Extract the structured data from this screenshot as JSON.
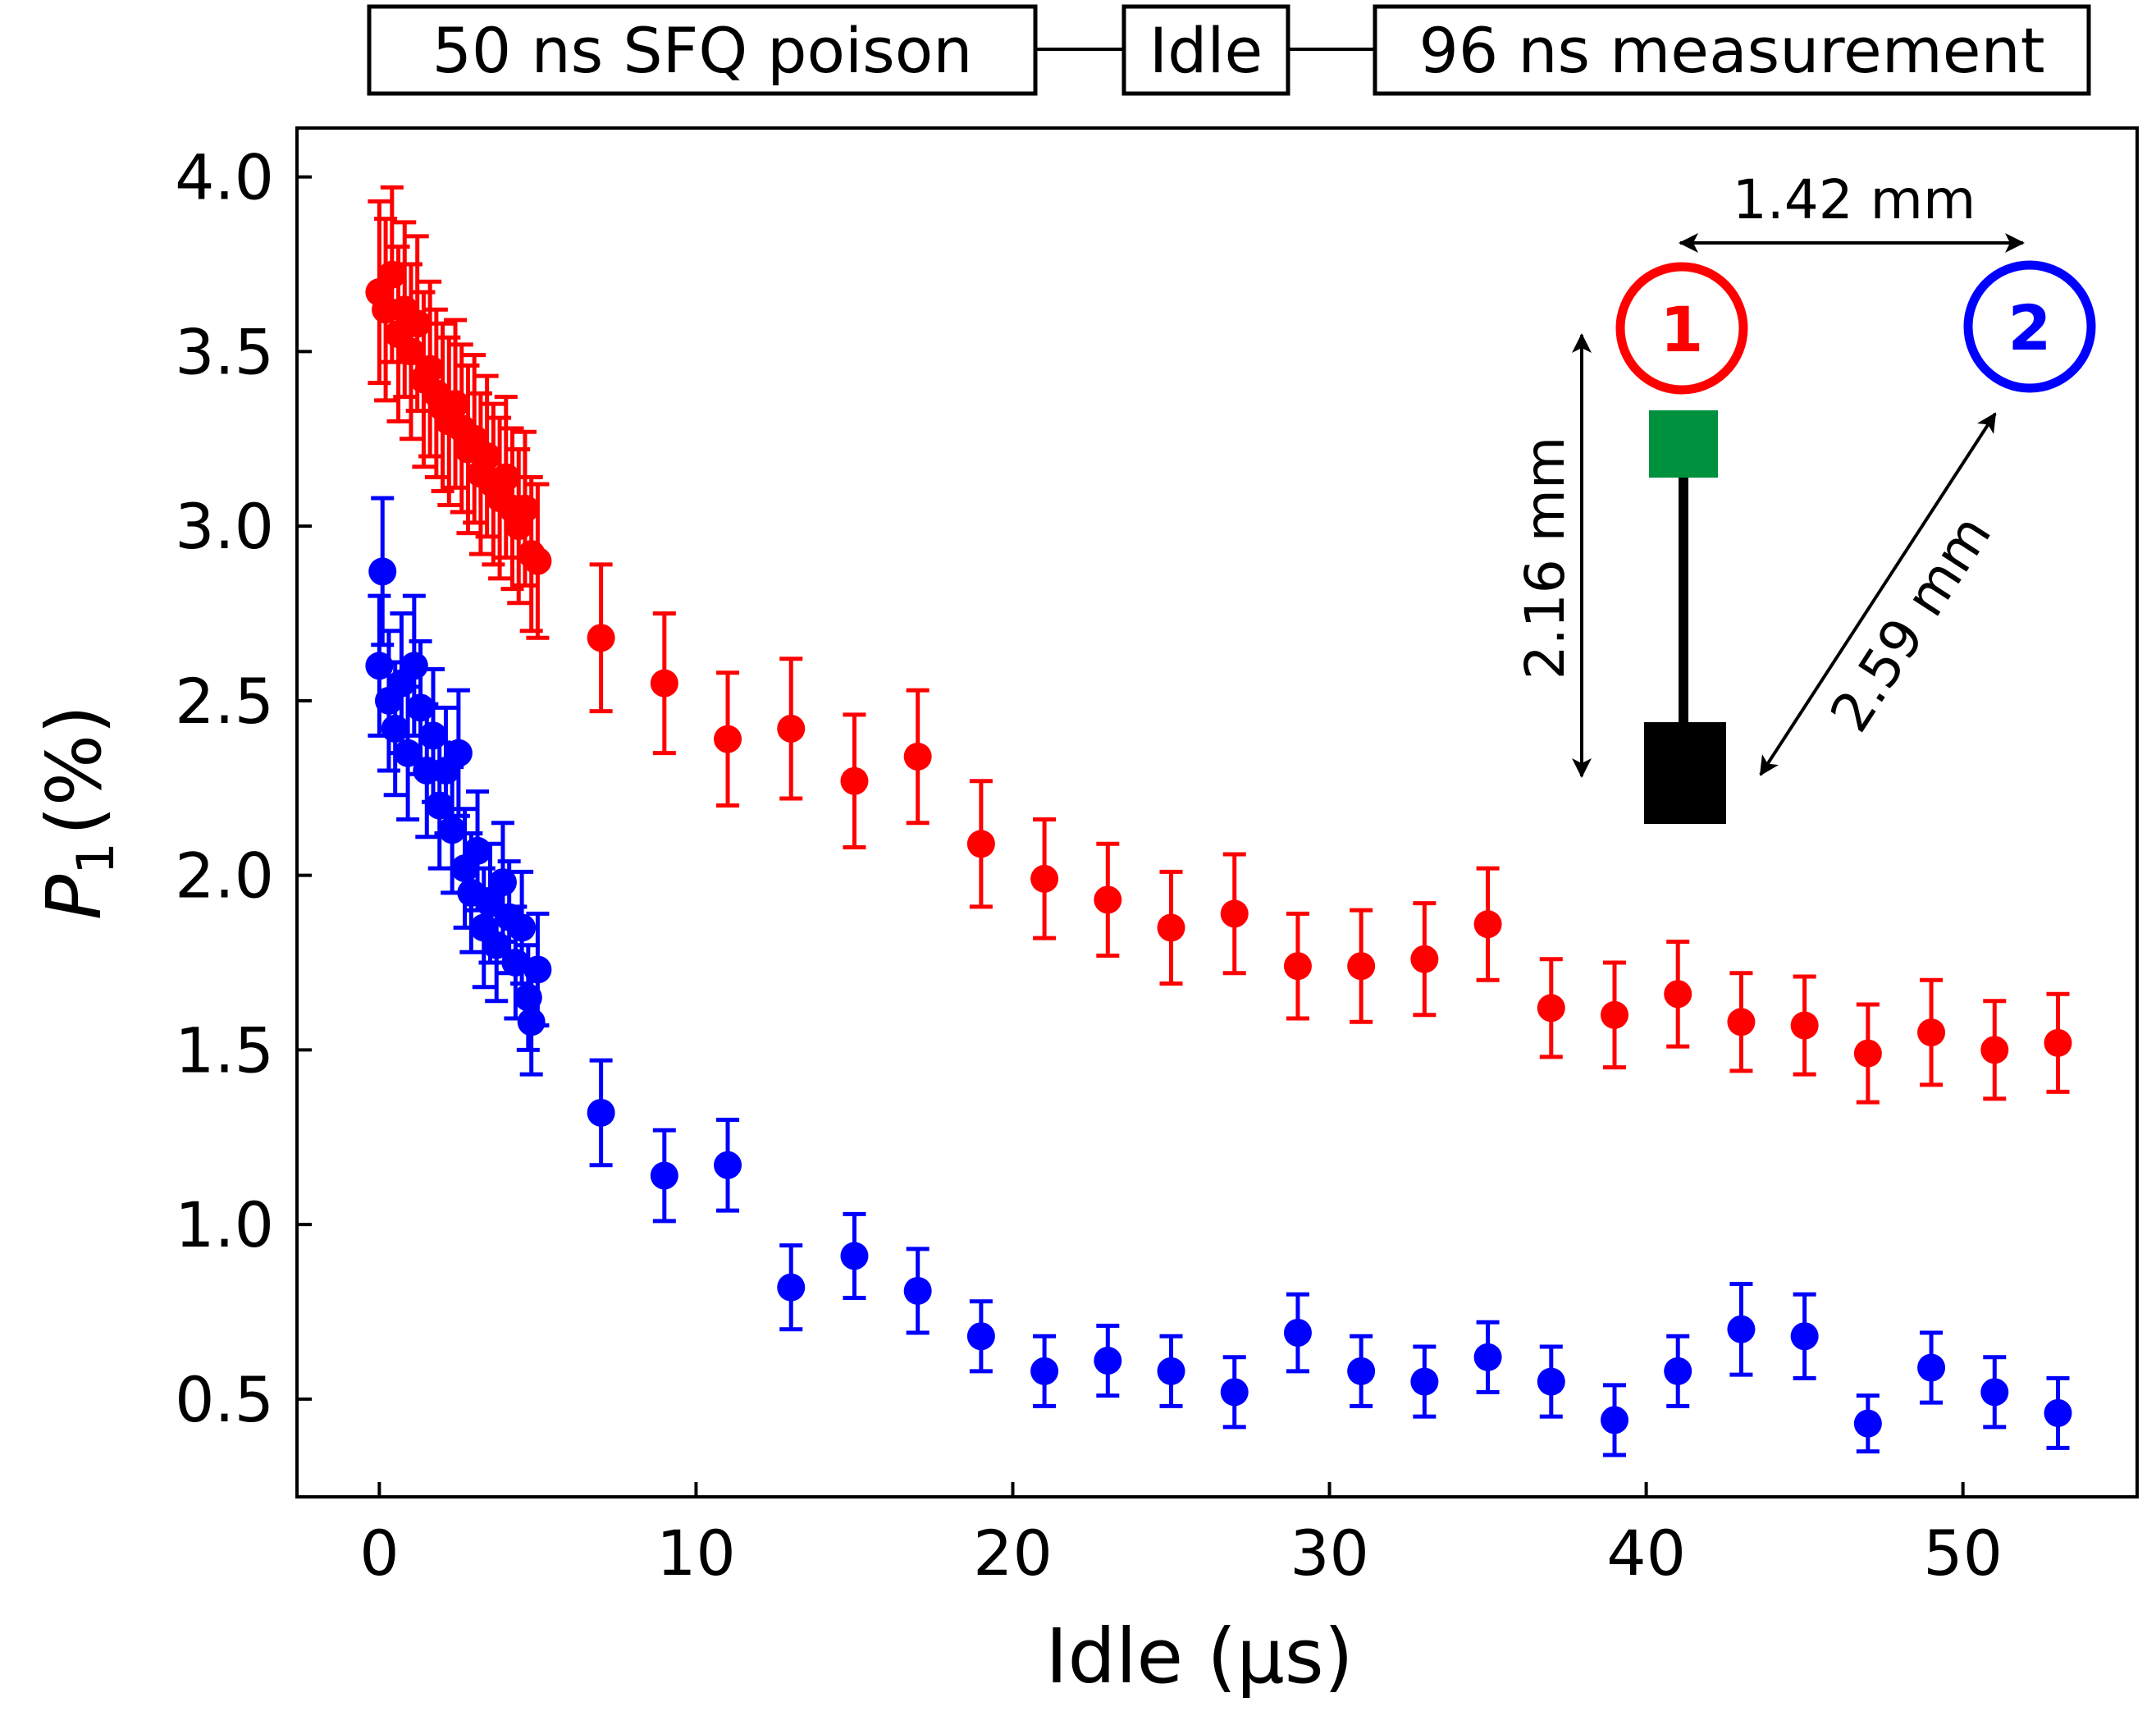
{
  "chart_data": {
    "type": "scatter",
    "title": "",
    "xlabel": "Idle (μs)",
    "ylabel_var": "P",
    "ylabel_sub": "1",
    "ylabel_unit": "(%)",
    "xlim": [
      -2.6,
      55.5
    ],
    "ylim": [
      0.22,
      4.14
    ],
    "xticks": [
      0,
      10,
      20,
      30,
      40,
      50
    ],
    "xtick_labels": [
      "0",
      "10",
      "20",
      "30",
      "40",
      "50"
    ],
    "yticks": [
      0.5,
      1.0,
      1.5,
      2.0,
      2.5,
      3.0,
      3.5,
      4.0
    ],
    "ytick_labels": [
      "0.5",
      "1.0",
      "1.5",
      "2.0",
      "2.5",
      "3.0",
      "3.5",
      "4.0"
    ],
    "series": [
      {
        "name": "qubit 1",
        "color": "#ff0000",
        "points": [
          {
            "x": 0.0,
            "y": 3.67,
            "err": 0.26
          },
          {
            "x": 0.2,
            "y": 3.62,
            "err": 0.26
          },
          {
            "x": 0.4,
            "y": 3.72,
            "err": 0.25
          },
          {
            "x": 0.6,
            "y": 3.55,
            "err": 0.25
          },
          {
            "x": 0.8,
            "y": 3.62,
            "err": 0.25
          },
          {
            "x": 1.0,
            "y": 3.5,
            "err": 0.25
          },
          {
            "x": 1.2,
            "y": 3.58,
            "err": 0.25
          },
          {
            "x": 1.4,
            "y": 3.42,
            "err": 0.25
          },
          {
            "x": 1.6,
            "y": 3.45,
            "err": 0.25
          },
          {
            "x": 1.8,
            "y": 3.38,
            "err": 0.24
          },
          {
            "x": 2.0,
            "y": 3.34,
            "err": 0.24
          },
          {
            "x": 2.2,
            "y": 3.3,
            "err": 0.24
          },
          {
            "x": 2.4,
            "y": 3.35,
            "err": 0.24
          },
          {
            "x": 2.6,
            "y": 3.28,
            "err": 0.24
          },
          {
            "x": 2.8,
            "y": 3.22,
            "err": 0.24
          },
          {
            "x": 3.0,
            "y": 3.25,
            "err": 0.24
          },
          {
            "x": 3.2,
            "y": 3.15,
            "err": 0.23
          },
          {
            "x": 3.4,
            "y": 3.2,
            "err": 0.23
          },
          {
            "x": 3.6,
            "y": 3.12,
            "err": 0.23
          },
          {
            "x": 3.8,
            "y": 3.08,
            "err": 0.23
          },
          {
            "x": 4.0,
            "y": 3.14,
            "err": 0.23
          },
          {
            "x": 4.2,
            "y": 3.05,
            "err": 0.23
          },
          {
            "x": 4.4,
            "y": 3.0,
            "err": 0.22
          },
          {
            "x": 4.6,
            "y": 3.05,
            "err": 0.22
          },
          {
            "x": 4.8,
            "y": 2.92,
            "err": 0.22
          },
          {
            "x": 5.0,
            "y": 2.9,
            "err": 0.22
          },
          {
            "x": 7,
            "y": 2.68,
            "err": 0.21
          },
          {
            "x": 9,
            "y": 2.55,
            "err": 0.2
          },
          {
            "x": 11,
            "y": 2.39,
            "err": 0.19
          },
          {
            "x": 13,
            "y": 2.42,
            "err": 0.2
          },
          {
            "x": 15,
            "y": 2.27,
            "err": 0.19
          },
          {
            "x": 17,
            "y": 2.34,
            "err": 0.19
          },
          {
            "x": 19,
            "y": 2.09,
            "err": 0.18
          },
          {
            "x": 21,
            "y": 1.99,
            "err": 0.17
          },
          {
            "x": 23,
            "y": 1.93,
            "err": 0.16
          },
          {
            "x": 25,
            "y": 1.85,
            "err": 0.16
          },
          {
            "x": 27,
            "y": 1.89,
            "err": 0.17
          },
          {
            "x": 29,
            "y": 1.74,
            "err": 0.15
          },
          {
            "x": 31,
            "y": 1.74,
            "err": 0.16
          },
          {
            "x": 33,
            "y": 1.76,
            "err": 0.16
          },
          {
            "x": 35,
            "y": 1.86,
            "err": 0.16
          },
          {
            "x": 37,
            "y": 1.62,
            "err": 0.14
          },
          {
            "x": 39,
            "y": 1.6,
            "err": 0.15
          },
          {
            "x": 41,
            "y": 1.66,
            "err": 0.15
          },
          {
            "x": 43,
            "y": 1.58,
            "err": 0.14
          },
          {
            "x": 45,
            "y": 1.57,
            "err": 0.14
          },
          {
            "x": 47,
            "y": 1.49,
            "err": 0.14
          },
          {
            "x": 49,
            "y": 1.55,
            "err": 0.15
          },
          {
            "x": 51,
            "y": 1.5,
            "err": 0.14
          },
          {
            "x": 53,
            "y": 1.52,
            "err": 0.14
          }
        ]
      },
      {
        "name": "qubit 2",
        "color": "#0000ff",
        "points": [
          {
            "x": 0.0,
            "y": 2.6,
            "err": 0.2
          },
          {
            "x": 0.1,
            "y": 2.87,
            "err": 0.21
          },
          {
            "x": 0.3,
            "y": 2.5,
            "err": 0.2
          },
          {
            "x": 0.5,
            "y": 2.42,
            "err": 0.19
          },
          {
            "x": 0.7,
            "y": 2.55,
            "err": 0.2
          },
          {
            "x": 0.9,
            "y": 2.35,
            "err": 0.19
          },
          {
            "x": 1.1,
            "y": 2.6,
            "err": 0.2
          },
          {
            "x": 1.3,
            "y": 2.48,
            "err": 0.19
          },
          {
            "x": 1.5,
            "y": 2.3,
            "err": 0.19
          },
          {
            "x": 1.7,
            "y": 2.4,
            "err": 0.19
          },
          {
            "x": 1.9,
            "y": 2.2,
            "err": 0.18
          },
          {
            "x": 2.1,
            "y": 2.3,
            "err": 0.18
          },
          {
            "x": 2.3,
            "y": 2.13,
            "err": 0.18
          },
          {
            "x": 2.5,
            "y": 2.35,
            "err": 0.18
          },
          {
            "x": 2.7,
            "y": 2.02,
            "err": 0.17
          },
          {
            "x": 2.9,
            "y": 1.95,
            "err": 0.17
          },
          {
            "x": 3.1,
            "y": 2.07,
            "err": 0.17
          },
          {
            "x": 3.3,
            "y": 1.85,
            "err": 0.17
          },
          {
            "x": 3.5,
            "y": 1.92,
            "err": 0.17
          },
          {
            "x": 3.7,
            "y": 1.8,
            "err": 0.16
          },
          {
            "x": 3.9,
            "y": 1.98,
            "err": 0.17
          },
          {
            "x": 4.1,
            "y": 1.88,
            "err": 0.16
          },
          {
            "x": 4.3,
            "y": 1.75,
            "err": 0.16
          },
          {
            "x": 4.5,
            "y": 1.85,
            "err": 0.16
          },
          {
            "x": 4.7,
            "y": 1.65,
            "err": 0.15
          },
          {
            "x": 4.8,
            "y": 1.58,
            "err": 0.15
          },
          {
            "x": 5.0,
            "y": 1.73,
            "err": 0.16
          },
          {
            "x": 7,
            "y": 1.32,
            "err": 0.15
          },
          {
            "x": 9,
            "y": 1.14,
            "err": 0.13
          },
          {
            "x": 11,
            "y": 1.17,
            "err": 0.13
          },
          {
            "x": 13,
            "y": 0.82,
            "err": 0.12
          },
          {
            "x": 15,
            "y": 0.91,
            "err": 0.12
          },
          {
            "x": 17,
            "y": 0.81,
            "err": 0.12
          },
          {
            "x": 19,
            "y": 0.68,
            "err": 0.1
          },
          {
            "x": 21,
            "y": 0.58,
            "err": 0.1
          },
          {
            "x": 23,
            "y": 0.61,
            "err": 0.1
          },
          {
            "x": 25,
            "y": 0.58,
            "err": 0.1
          },
          {
            "x": 27,
            "y": 0.52,
            "err": 0.1
          },
          {
            "x": 29,
            "y": 0.69,
            "err": 0.11
          },
          {
            "x": 31,
            "y": 0.58,
            "err": 0.1
          },
          {
            "x": 33,
            "y": 0.55,
            "err": 0.1
          },
          {
            "x": 35,
            "y": 0.62,
            "err": 0.1
          },
          {
            "x": 37,
            "y": 0.55,
            "err": 0.1
          },
          {
            "x": 39,
            "y": 0.44,
            "err": 0.1
          },
          {
            "x": 41,
            "y": 0.58,
            "err": 0.1
          },
          {
            "x": 43,
            "y": 0.7,
            "err": 0.13
          },
          {
            "x": 45,
            "y": 0.68,
            "err": 0.12
          },
          {
            "x": 47,
            "y": 0.43,
            "err": 0.08
          },
          {
            "x": 49,
            "y": 0.59,
            "err": 0.1
          },
          {
            "x": 51,
            "y": 0.52,
            "err": 0.1
          },
          {
            "x": 53,
            "y": 0.46,
            "err": 0.1
          }
        ]
      }
    ]
  },
  "pulse_sequence": {
    "poison": "50 ns SFQ poison",
    "idle": "Idle",
    "measurement": "96 ns measurement"
  },
  "inset": {
    "qubit1_label": "1",
    "qubit2_label": "2",
    "qubit1_color": "#ff0000",
    "qubit2_color": "#0000ff",
    "pad_color": "#00913f",
    "dist_12": "1.42 mm",
    "dist_vertical": "2.16 mm",
    "dist_diagonal": "2.59 mm"
  }
}
